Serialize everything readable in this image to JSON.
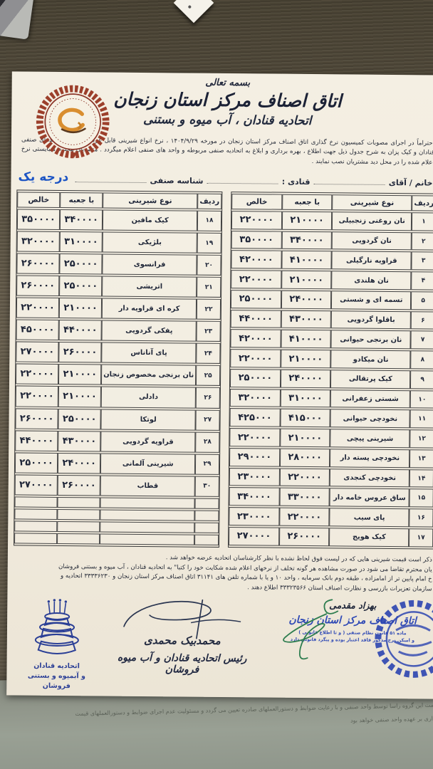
{
  "document": {
    "bismillah": "بسمه تعالی",
    "org_title": "اتاق اصناف مرکز استان زنجان",
    "org_subtitle": "اتحادیه قنادان ، آب میوه و بستنی",
    "intro": "احتراماً در اجرای مصوبات کمیسیون نرخ گذاری اتاق اصناف مرکز استان زنجان در مورخه ۱۴۰۴/۹/۲۹ ، نرخ انواع شیرینی قابل عرضه از سوی واحدهای صنفی قنادان و کیک پزان به شرح جدول ذیل جهت اطلاع ، بهره برداری و ابلاغ به اتحادیه صنفی مربوطه و واحد های صنفی اعلام میگردد . متصدیان محترم میبایستی نرخ اعلام شده را در محل دید مشتریان نصب نمایند .",
    "form": {
      "name_label": "خانم / آقای",
      "shop_label": "قنادی :",
      "id_label": "شناسه صنفی",
      "grade_label": "درجه یک"
    },
    "date_shown": "۱۴۰۴/۹/۲۹"
  },
  "tables": {
    "headers": {
      "row": "ردیف",
      "type": "نوع شیرینی",
      "with_box": "با جعبه",
      "net": "خالص"
    },
    "right": {
      "rows": [
        {
          "no": "۱",
          "name": "نان روغنی زنجبیلی",
          "with_box": "۲۱۰۰۰۰",
          "net": "۲۲۰۰۰۰"
        },
        {
          "no": "۲",
          "name": "نان گردویی",
          "with_box": "۳۴۰۰۰۰",
          "net": "۳۵۰۰۰۰"
        },
        {
          "no": "۳",
          "name": "قراویه نارگیلی",
          "with_box": "۴۱۰۰۰۰",
          "net": "۴۲۰۰۰۰"
        },
        {
          "no": "۴",
          "name": "نان هلندی",
          "with_box": "۲۱۰۰۰۰",
          "net": "۲۲۰۰۰۰"
        },
        {
          "no": "۵",
          "name": "تسمه ای و شستی",
          "with_box": "۲۴۰۰۰۰",
          "net": "۲۵۰۰۰۰"
        },
        {
          "no": "۶",
          "name": "باقلوا گردویی",
          "with_box": "۴۳۰۰۰۰",
          "net": "۴۴۰۰۰۰"
        },
        {
          "no": "۷",
          "name": "نان برنجی حیوانی",
          "with_box": "۴۱۰۰۰۰",
          "net": "۴۲۰۰۰۰"
        },
        {
          "no": "۸",
          "name": "نان میکادو",
          "with_box": "۲۱۰۰۰۰",
          "net": "۲۲۰۰۰۰"
        },
        {
          "no": "۹",
          "name": "کیک پرتقالی",
          "with_box": "۲۴۰۰۰۰",
          "net": "۲۵۰۰۰۰"
        },
        {
          "no": "۱۰",
          "name": "شستی زعفرانی",
          "with_box": "۳۱۰۰۰۰",
          "net": "۳۲۰۰۰۰"
        },
        {
          "no": "۱۱",
          "name": "نخودچی حیوانی",
          "with_box": "۴۱۵۰۰۰",
          "net": "۴۲۵۰۰۰"
        },
        {
          "no": "۱۲",
          "name": "شیرینی پیچی",
          "with_box": "۲۱۰۰۰۰",
          "net": "۲۲۰۰۰۰"
        },
        {
          "no": "۱۳",
          "name": "نخودچی پسته دار",
          "with_box": "۲۸۰۰۰۰",
          "net": "۲۹۰۰۰۰"
        },
        {
          "no": "۱۴",
          "name": "نخودچی کنجدی",
          "with_box": "۲۲۰۰۰۰",
          "net": "۲۳۰۰۰۰"
        },
        {
          "no": "۱۵",
          "name": "ساق عروس خامه دار",
          "with_box": "۳۳۰۰۰۰",
          "net": "۳۴۰۰۰۰"
        },
        {
          "no": "۱۶",
          "name": "پای سیب",
          "with_box": "۲۲۰۰۰۰",
          "net": "۲۳۰۰۰۰"
        },
        {
          "no": "۱۷",
          "name": "کیک هویج",
          "with_box": "۲۶۰۰۰۰",
          "net": "۲۷۰۰۰۰"
        }
      ]
    },
    "left": {
      "rows": [
        {
          "no": "۱۸",
          "name": "کیک مافین",
          "with_box": "۳۴۰۰۰۰",
          "net": "۳۵۰۰۰۰"
        },
        {
          "no": "۱۹",
          "name": "بلژیکی",
          "with_box": "۳۱۰۰۰۰",
          "net": "۳۲۰۰۰۰"
        },
        {
          "no": "۲۰",
          "name": "فرانسوی",
          "with_box": "۲۵۰۰۰۰",
          "net": "۲۶۰۰۰۰"
        },
        {
          "no": "۲۱",
          "name": "اتریشی",
          "with_box": "۲۵۰۰۰۰",
          "net": "۲۶۰۰۰۰"
        },
        {
          "no": "۲۲",
          "name": "کره ای قراویه دار",
          "with_box": "۲۱۰۰۰۰",
          "net": "۲۲۰۰۰۰"
        },
        {
          "no": "۲۳",
          "name": "پفکی گردویی",
          "with_box": "۴۴۰۰۰۰",
          "net": "۴۵۰۰۰۰"
        },
        {
          "no": "۲۴",
          "name": "پای آناناس",
          "with_box": "۲۶۰۰۰۰",
          "net": "۲۷۰۰۰۰"
        },
        {
          "no": "۲۵",
          "name": "نان برنجی مخصوص زنجان",
          "with_box": "۲۱۰۰۰۰",
          "net": "۲۲۰۰۰۰"
        },
        {
          "no": "۲۶",
          "name": "دادلی",
          "with_box": "۲۱۰۰۰۰",
          "net": "۲۲۰۰۰۰"
        },
        {
          "no": "۲۷",
          "name": "لوتکا",
          "with_box": "۲۵۰۰۰۰",
          "net": "۲۶۰۰۰۰"
        },
        {
          "no": "۲۸",
          "name": "قراویه گردویی",
          "with_box": "۴۳۰۰۰۰",
          "net": "۴۴۰۰۰۰"
        },
        {
          "no": "۲۹",
          "name": "شیرینی آلمانی",
          "with_box": "۲۴۰۰۰۰",
          "net": "۲۵۰۰۰۰"
        },
        {
          "no": "۳۰",
          "name": "قطاب",
          "with_box": "۲۶۰۰۰۰",
          "net": "۲۷۰۰۰۰"
        }
      ],
      "empty_rows": 4
    }
  },
  "footer": {
    "lines": [
      "ذکر است قیمت شیرینی هایی که در لیست فوق لحاظ نشده با نظر کارشناسان اتحادیه عرضه خواهد شد .",
      "یان محترم  تقاضا می شود در صورت مشاهده هر گونه تخلف از نرخهای اعلام شده شکایت خود را کتبا\" به اتحادیه قنادان ، آب میوه و بستنی فروشان",
      "خ امام پایین تر از امامزاده ، طبقه دوم بانک سرمایه ، واحد ۱۰ و یا با شماره تلفن های ۳۱۱۴۱ اتاق اصناف مرکز استان زنجان و ۳۳۳۳۶۲۳۰ اتحادیه و",
      "سازمان تعزیرات بازرسی و نظارت اصناف استان ۳۳۳۲۳۵۶۶ اطلاع دهند ."
    ]
  },
  "signatures": {
    "center": {
      "name": "محمدبیک محمدی",
      "title": "رئیس اتحادیه قنادان و آب میوه فروشان"
    },
    "right": {
      "name": "بهزاد مقدمی",
      "title": "اتاق اصناف مرکز استان زنجان",
      "note1": "ماده ۵۱ قانون نظام صنفی ( و تا اطلاع قانونی )",
      "note2": "و اسکن نرخ مذکور فاقد اعتبار بوده و پیگرد قانونی دارد"
    },
    "left_stamp": {
      "line1": "اتحادیه قنادان",
      "line2": "و آبمیوه و بستنی فروشان"
    }
  },
  "under_sheet": {
    "heading": "اولویت گروه سوم:",
    "line1": "قیمت این گروه راسا توسط واحد صنفی و با رعایت ضوابط و دستورالعملهای صادره تعیین می گردد و مسئولیت عدم اجرای ضوابط و دستورالعملهای قیمت",
    "line2": "گذاری بر عهده واحد صنفی خواهد بود"
  },
  "colors": {
    "grade_blue": "#1d55c4",
    "stamp_blue": "#2b3f96",
    "emblem_red": "#9c3f2b",
    "emblem_orange": "#d98e2f",
    "paper": "#f2edе1",
    "wood": "#5d5545"
  }
}
